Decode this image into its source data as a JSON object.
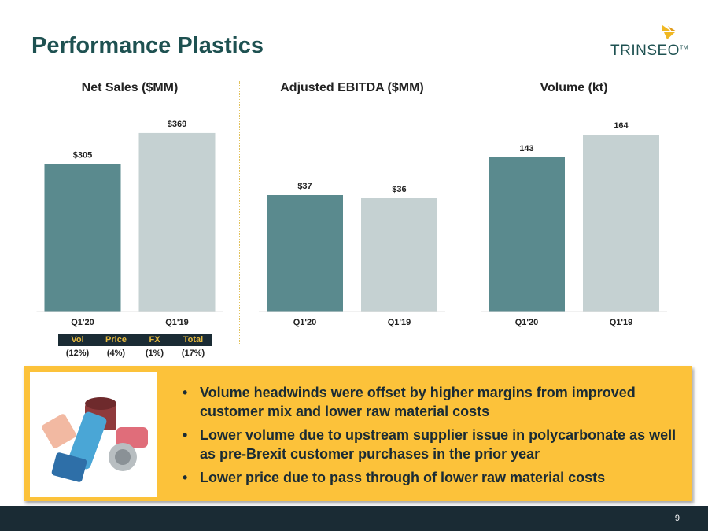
{
  "page": {
    "title": "Performance Plastics",
    "page_number": "9",
    "logo_text": "TRINSEO",
    "logo_tm": "TM"
  },
  "colors": {
    "title": "#1e5151",
    "q1_20_bar": "#5a8a8e",
    "q1_19_bar": "#c5d1d2",
    "callout": "#fcc23a",
    "footer": "#1a2b34",
    "decomp_header_text": "#e5b93e"
  },
  "chart_data": [
    {
      "type": "bar",
      "title": "Net Sales ($MM)",
      "categories": [
        "Q1'20",
        "Q1'19"
      ],
      "values": [
        305,
        369
      ],
      "labels": [
        "$305",
        "$369"
      ],
      "ylim": [
        0,
        390
      ]
    },
    {
      "type": "bar",
      "title": "Adjusted EBITDA ($MM)",
      "categories": [
        "Q1'20",
        "Q1'19"
      ],
      "values": [
        37,
        36
      ],
      "labels": [
        "$37",
        "$36"
      ],
      "ylim": [
        0,
        60
      ]
    },
    {
      "type": "bar",
      "title": "Volume (kt)",
      "categories": [
        "Q1'20",
        "Q1'19"
      ],
      "values": [
        143,
        164
      ],
      "labels": [
        "143",
        "164"
      ],
      "ylim": [
        0,
        175
      ]
    }
  ],
  "sales_bridge": {
    "headers": [
      "Vol",
      "Price",
      "FX",
      "Total"
    ],
    "values": [
      "(12%)",
      "(4%)",
      "(1%)",
      "(17%)"
    ]
  },
  "callout": {
    "image_description": "inhaler-photo",
    "bullets": [
      "Volume headwinds were offset by higher margins from improved customer mix and lower raw material costs",
      "Lower volume due to upstream supplier issue in polycarbonate as well as pre-Brexit customer purchases in the prior year",
      "Lower price due to pass through of lower raw material costs"
    ]
  }
}
